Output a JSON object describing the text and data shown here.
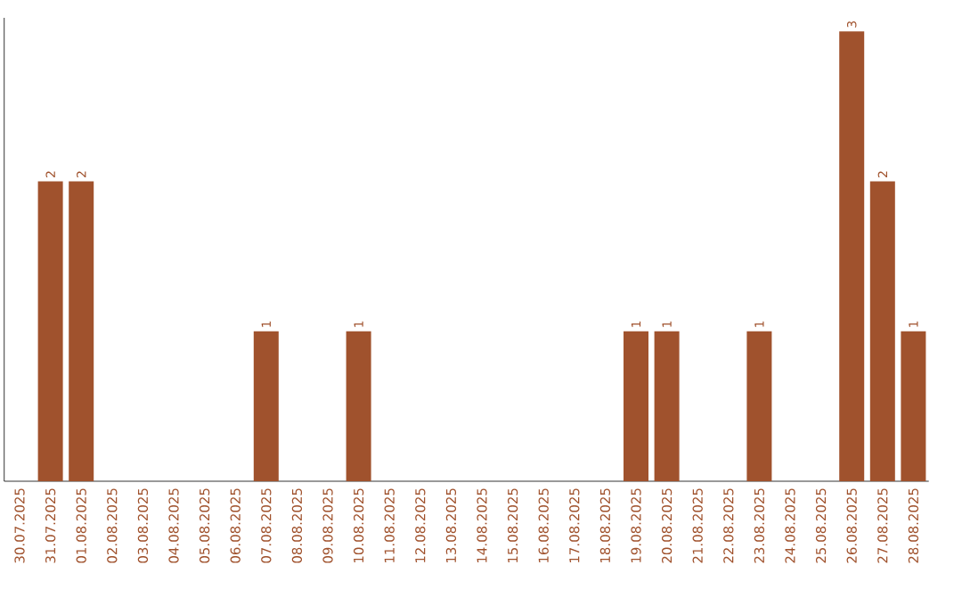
{
  "chart_data": {
    "type": "bar",
    "color": "#a0522d",
    "categories": [
      "30.07.2025",
      "31.07.2025",
      "01.08.2025",
      "02.08.2025",
      "03.08.2025",
      "04.08.2025",
      "05.08.2025",
      "06.08.2025",
      "07.08.2025",
      "08.08.2025",
      "09.08.2025",
      "10.08.2025",
      "11.08.2025",
      "12.08.2025",
      "13.08.2025",
      "14.08.2025",
      "15.08.2025",
      "16.08.2025",
      "17.08.2025",
      "18.08.2025",
      "19.08.2025",
      "20.08.2025",
      "21.08.2025",
      "22.08.2025",
      "23.08.2025",
      "24.08.2025",
      "25.08.2025",
      "26.08.2025",
      "27.08.2025",
      "28.08.2025"
    ],
    "values": [
      0,
      2,
      2,
      0,
      0,
      0,
      0,
      0,
      1,
      0,
      0,
      1,
      0,
      0,
      0,
      0,
      0,
      0,
      0,
      0,
      1,
      1,
      0,
      0,
      1,
      0,
      0,
      3,
      2,
      1
    ],
    "value_labels": [
      null,
      "2",
      "2",
      null,
      null,
      null,
      null,
      null,
      "1",
      null,
      null,
      "1",
      null,
      null,
      null,
      null,
      null,
      null,
      null,
      null,
      "1",
      "1",
      null,
      null,
      "1",
      null,
      null,
      "3",
      "2",
      "1"
    ]
  }
}
